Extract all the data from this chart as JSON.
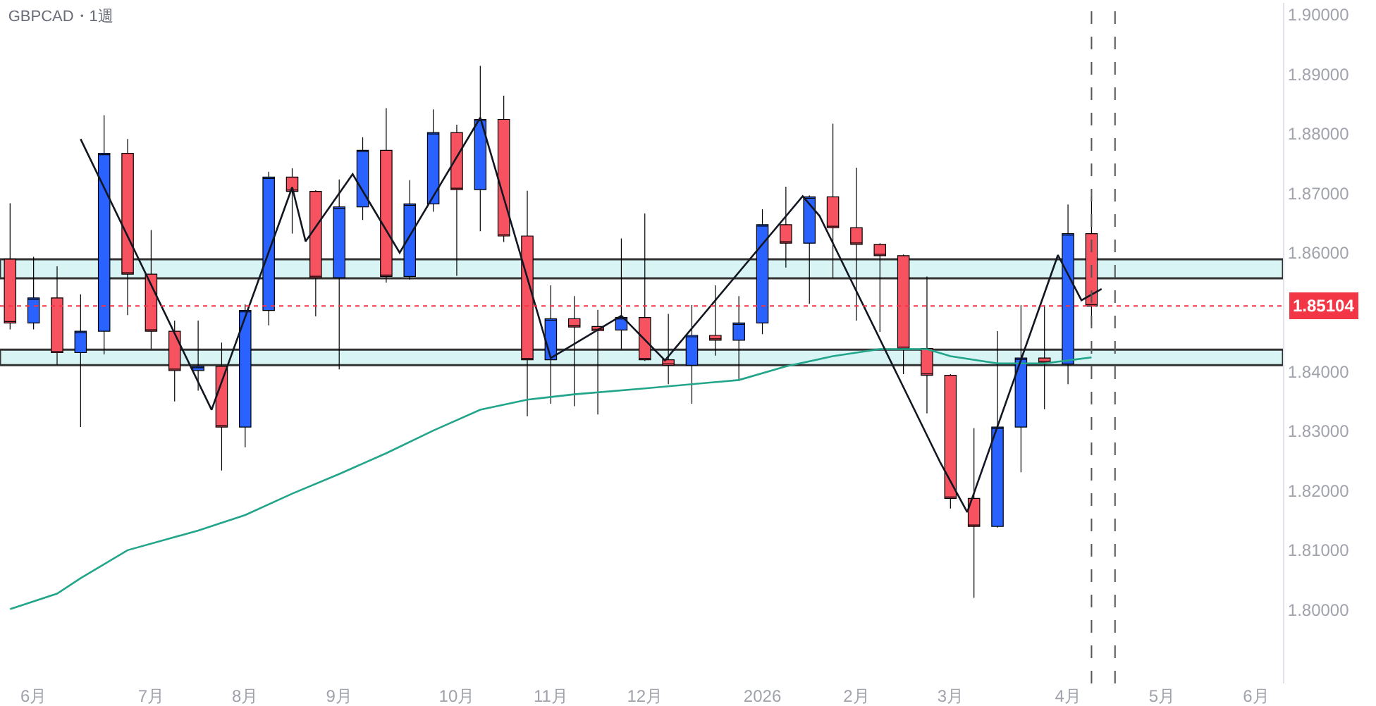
{
  "chart_data": {
    "type": "candlestick",
    "title": "GBPCAD・1週",
    "x": [
      "2025-05-26",
      "2025-06-02",
      "2025-06-09",
      "2025-06-16",
      "2025-06-23",
      "2025-06-30",
      "2025-07-07",
      "2025-07-14",
      "2025-07-21",
      "2025-07-28",
      "2025-08-04",
      "2025-08-11",
      "2025-08-18",
      "2025-08-25",
      "2025-09-01",
      "2025-09-08",
      "2025-09-15",
      "2025-09-22",
      "2025-09-29",
      "2025-10-06",
      "2025-10-13",
      "2025-10-20",
      "2025-10-27",
      "2025-11-03",
      "2025-11-10",
      "2025-11-17",
      "2025-11-24",
      "2025-12-01",
      "2025-12-08",
      "2025-12-15",
      "2025-12-22",
      "2025-12-29",
      "2026-01-05",
      "2026-01-12",
      "2026-01-19",
      "2026-01-26",
      "2026-02-02",
      "2026-02-09",
      "2026-02-16",
      "2026-02-23",
      "2026-03-02",
      "2026-03-09",
      "2026-03-16",
      "2026-03-23",
      "2026-03-30",
      "2026-04-06",
      "2026-04-13"
    ],
    "ohlc": [
      [
        1.8589,
        1.8683,
        1.8471,
        1.8482
      ],
      [
        1.8482,
        1.8593,
        1.8471,
        1.8524
      ],
      [
        1.8524,
        1.8577,
        1.8412,
        1.8432
      ],
      [
        1.8432,
        1.853,
        1.8307,
        1.8468
      ],
      [
        1.8468,
        1.8831,
        1.8429,
        1.8767
      ],
      [
        1.8767,
        1.8791,
        1.8495,
        1.8564
      ],
      [
        1.8564,
        1.8638,
        1.8438,
        1.8468
      ],
      [
        1.8468,
        1.8486,
        1.835,
        1.8402
      ],
      [
        1.8402,
        1.8486,
        1.8368,
        1.8409
      ],
      [
        1.8409,
        1.8449,
        1.8234,
        1.8307
      ],
      [
        1.8307,
        1.8513,
        1.8273,
        1.8503
      ],
      [
        1.8503,
        1.8736,
        1.8478,
        1.8727
      ],
      [
        1.8727,
        1.8742,
        1.8632,
        1.8703
      ],
      [
        1.8703,
        1.8705,
        1.8493,
        1.8558
      ],
      [
        1.8558,
        1.8723,
        1.8404,
        1.8677
      ],
      [
        1.8677,
        1.8794,
        1.8655,
        1.8772
      ],
      [
        1.8772,
        1.8843,
        1.855,
        1.856
      ],
      [
        1.856,
        1.8722,
        1.8555,
        1.8682
      ],
      [
        1.8682,
        1.8841,
        1.8669,
        1.8802
      ],
      [
        1.8802,
        1.8815,
        1.8561,
        1.8706
      ],
      [
        1.8706,
        1.8914,
        1.8636,
        1.8824
      ],
      [
        1.8824,
        1.8864,
        1.8618,
        1.8628
      ],
      [
        1.8628,
        1.8704,
        1.8325,
        1.842
      ],
      [
        1.842,
        1.8545,
        1.8346,
        1.8489
      ],
      [
        1.8489,
        1.8527,
        1.8342,
        1.8475
      ],
      [
        1.8476,
        1.8504,
        1.8328,
        1.8469
      ],
      [
        1.847,
        1.8624,
        1.8437,
        1.8491
      ],
      [
        1.8491,
        1.8666,
        1.8418,
        1.842
      ],
      [
        1.842,
        1.8497,
        1.8379,
        1.8411
      ],
      [
        1.8411,
        1.8512,
        1.8346,
        1.8461
      ],
      [
        1.8461,
        1.8545,
        1.8427,
        1.8453
      ],
      [
        1.8453,
        1.8527,
        1.8385,
        1.8482
      ],
      [
        1.8482,
        1.8673,
        1.8463,
        1.8647
      ],
      [
        1.8647,
        1.8711,
        1.8575,
        1.8616
      ],
      [
        1.8616,
        1.8696,
        1.8514,
        1.8694
      ],
      [
        1.8694,
        1.8817,
        1.8557,
        1.8642
      ],
      [
        1.8642,
        1.8743,
        1.8486,
        1.8614
      ],
      [
        1.8614,
        1.8616,
        1.8467,
        1.8595
      ],
      [
        1.8595,
        1.8597,
        1.8396,
        1.8439
      ],
      [
        1.8439,
        1.856,
        1.833,
        1.8394
      ],
      [
        1.8394,
        1.8396,
        1.817,
        1.8187
      ],
      [
        1.8187,
        1.8305,
        1.802,
        1.814
      ],
      [
        1.814,
        1.8468,
        1.8138,
        1.8307
      ],
      [
        1.8307,
        1.8512,
        1.8231,
        1.8423
      ],
      [
        1.8423,
        1.8512,
        1.8337,
        1.8415
      ],
      [
        1.8413,
        1.8681,
        1.8379,
        1.8632
      ],
      [
        1.8632,
        1.8695,
        1.8478,
        1.85104
      ]
    ],
    "colors": [
      "#f7525f",
      "#2962ff",
      "#f7525f",
      "#2962ff",
      "#2962ff",
      "#f7525f",
      "#f7525f",
      "#f7525f",
      "#2962ff",
      "#f7525f",
      "#2962ff",
      "#2962ff",
      "#f7525f",
      "#f7525f",
      "#2962ff",
      "#2962ff",
      "#f7525f",
      "#2962ff",
      "#2962ff",
      "#f7525f",
      "#2962ff",
      "#f7525f",
      "#f7525f",
      "#2962ff",
      "#f7525f",
      "#f7525f",
      "#2962ff",
      "#f7525f",
      "#f7525f",
      "#2962ff",
      "#f7525f",
      "#2962ff",
      "#2962ff",
      "#f7525f",
      "#2962ff",
      "#f7525f",
      "#f7525f",
      "#f7525f",
      "#f7525f",
      "#f7525f",
      "#f7525f",
      "#f7525f",
      "#2962ff",
      "#2962ff",
      "#f7525f",
      "#2962ff",
      "#f7525f"
    ],
    "series": [
      {
        "type": "line",
        "color": "#22a58a",
        "x": [
          "2025-05-26",
          "2025-06-09",
          "2025-06-16",
          "2025-06-30",
          "2025-07-21",
          "2025-08-04",
          "2025-08-18",
          "2025-09-01",
          "2025-09-15",
          "2025-09-29",
          "2025-10-13",
          "2025-10-27",
          "2025-11-10",
          "2025-12-01",
          "2025-12-29",
          "2026-01-12",
          "2026-01-26",
          "2026-02-09",
          "2026-02-23",
          "2026-03-02",
          "2026-03-16",
          "2026-03-30",
          "2026-04-13"
        ],
        "values": [
          1.8001,
          1.8027,
          1.8053,
          1.81,
          1.8133,
          1.8159,
          1.8195,
          1.8228,
          1.8263,
          1.8301,
          1.8336,
          1.8353,
          1.8362,
          1.8372,
          1.8386,
          1.8409,
          1.8426,
          1.8438,
          1.8438,
          1.8426,
          1.8414,
          1.8414,
          1.8424
        ]
      },
      {
        "type": "line",
        "color": "#131722",
        "x": [
          "2025-06-16",
          "2025-07-25",
          "2025-08-18",
          "2025-08-22",
          "2025-09-05",
          "2025-09-19",
          "2025-10-13",
          "2025-11-03",
          "2025-11-24",
          "2025-12-07",
          "2026-01-17",
          "2026-01-22",
          "2026-02-27",
          "2026-03-07",
          "2026-04-03",
          "2026-04-10",
          "2026-04-16"
        ],
        "values": [
          1.8791,
          1.8336,
          1.871,
          1.8619,
          1.8732,
          1.86,
          1.8827,
          1.8423,
          1.8494,
          1.8419,
          1.8695,
          1.8662,
          1.8247,
          1.8164,
          1.8596,
          1.852,
          1.8539
        ]
      }
    ],
    "xlim": [
      "2025-05-23",
      "2026-06-09"
    ],
    "xticks": [
      {
        "value": "2025-06-02",
        "label": "6月"
      },
      {
        "value": "2025-07-07",
        "label": "7月"
      },
      {
        "value": "2025-08-04",
        "label": "8月"
      },
      {
        "value": "2025-09-01",
        "label": "9月"
      },
      {
        "value": "2025-10-06",
        "label": "10月"
      },
      {
        "value": "2025-11-03",
        "label": "11月"
      },
      {
        "value": "2025-12-01",
        "label": "12月"
      },
      {
        "value": "2026-01-05",
        "label": "2026"
      },
      {
        "value": "2026-02-02",
        "label": "2月"
      },
      {
        "value": "2026-03-02",
        "label": "3月"
      },
      {
        "value": "2026-04-06",
        "label": "4月"
      },
      {
        "value": "2026-05-04",
        "label": "5月"
      },
      {
        "value": "2026-06-01",
        "label": "6月"
      }
    ],
    "ylim": [
      1.7876,
      1.902
    ],
    "yticks": [
      {
        "value": 1.8,
        "label": "1.80000"
      },
      {
        "value": 1.81,
        "label": "1.81000"
      },
      {
        "value": 1.82,
        "label": "1.82000"
      },
      {
        "value": 1.83,
        "label": "1.83000"
      },
      {
        "value": 1.84,
        "label": "1.84000"
      },
      {
        "value": 1.86,
        "label": "1.86000"
      },
      {
        "value": 1.87,
        "label": "1.87000"
      },
      {
        "value": 1.88,
        "label": "1.88000"
      },
      {
        "value": 1.89,
        "label": "1.89000"
      },
      {
        "value": 1.9,
        "label": "1.90000"
      }
    ],
    "bands": [
      {
        "axis": "y",
        "from": 1.8557,
        "to": 1.8589,
        "color": "#d8f4f5"
      },
      {
        "axis": "y",
        "from": 1.8411,
        "to": 1.8437,
        "color": "#d8f4f5"
      }
    ],
    "ref_lines": [
      {
        "axis": "y",
        "value": 1.85104,
        "label": "1.85104",
        "color": "#f23645",
        "line_style": "dotted"
      },
      {
        "axis": "x",
        "value": "2026-04-13",
        "color": "#555555",
        "line_style": "dashed"
      },
      {
        "axis": "x",
        "value": "2026-04-20",
        "color": "#555555",
        "line_style": "dashed"
      }
    ],
    "grid": false
  }
}
